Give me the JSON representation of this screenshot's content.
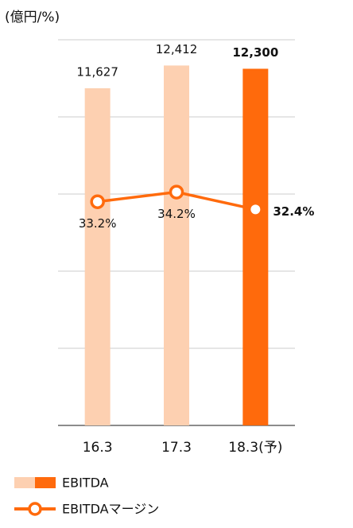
{
  "chart_data": {
    "type": "bar-line",
    "title": "(億円/%)",
    "categories": [
      "16.3",
      "17.3",
      "18.3(予)"
    ],
    "series": [
      {
        "name": "EBITDA",
        "type": "bar",
        "colors": [
          "#fdd0b1",
          "#fdd0b1",
          "#ff6a0c"
        ],
        "values": [
          11627,
          12412,
          12300
        ],
        "value_labels": [
          "11,627",
          "12,412",
          "12,300"
        ]
      },
      {
        "name": "EBITDAマージン",
        "type": "line",
        "axis": "y2",
        "color": "#ff6a0c",
        "values": [
          33.2,
          34.2,
          32.4
        ],
        "value_labels": [
          "33.2%",
          "34.2%",
          "32.4%"
        ]
      }
    ],
    "ylim": [
      0,
      13300
    ],
    "yticks": [
      0,
      2660,
      5320,
      7980,
      10640,
      13300
    ],
    "y2lim": [
      10,
      50
    ],
    "grid": true
  }
}
